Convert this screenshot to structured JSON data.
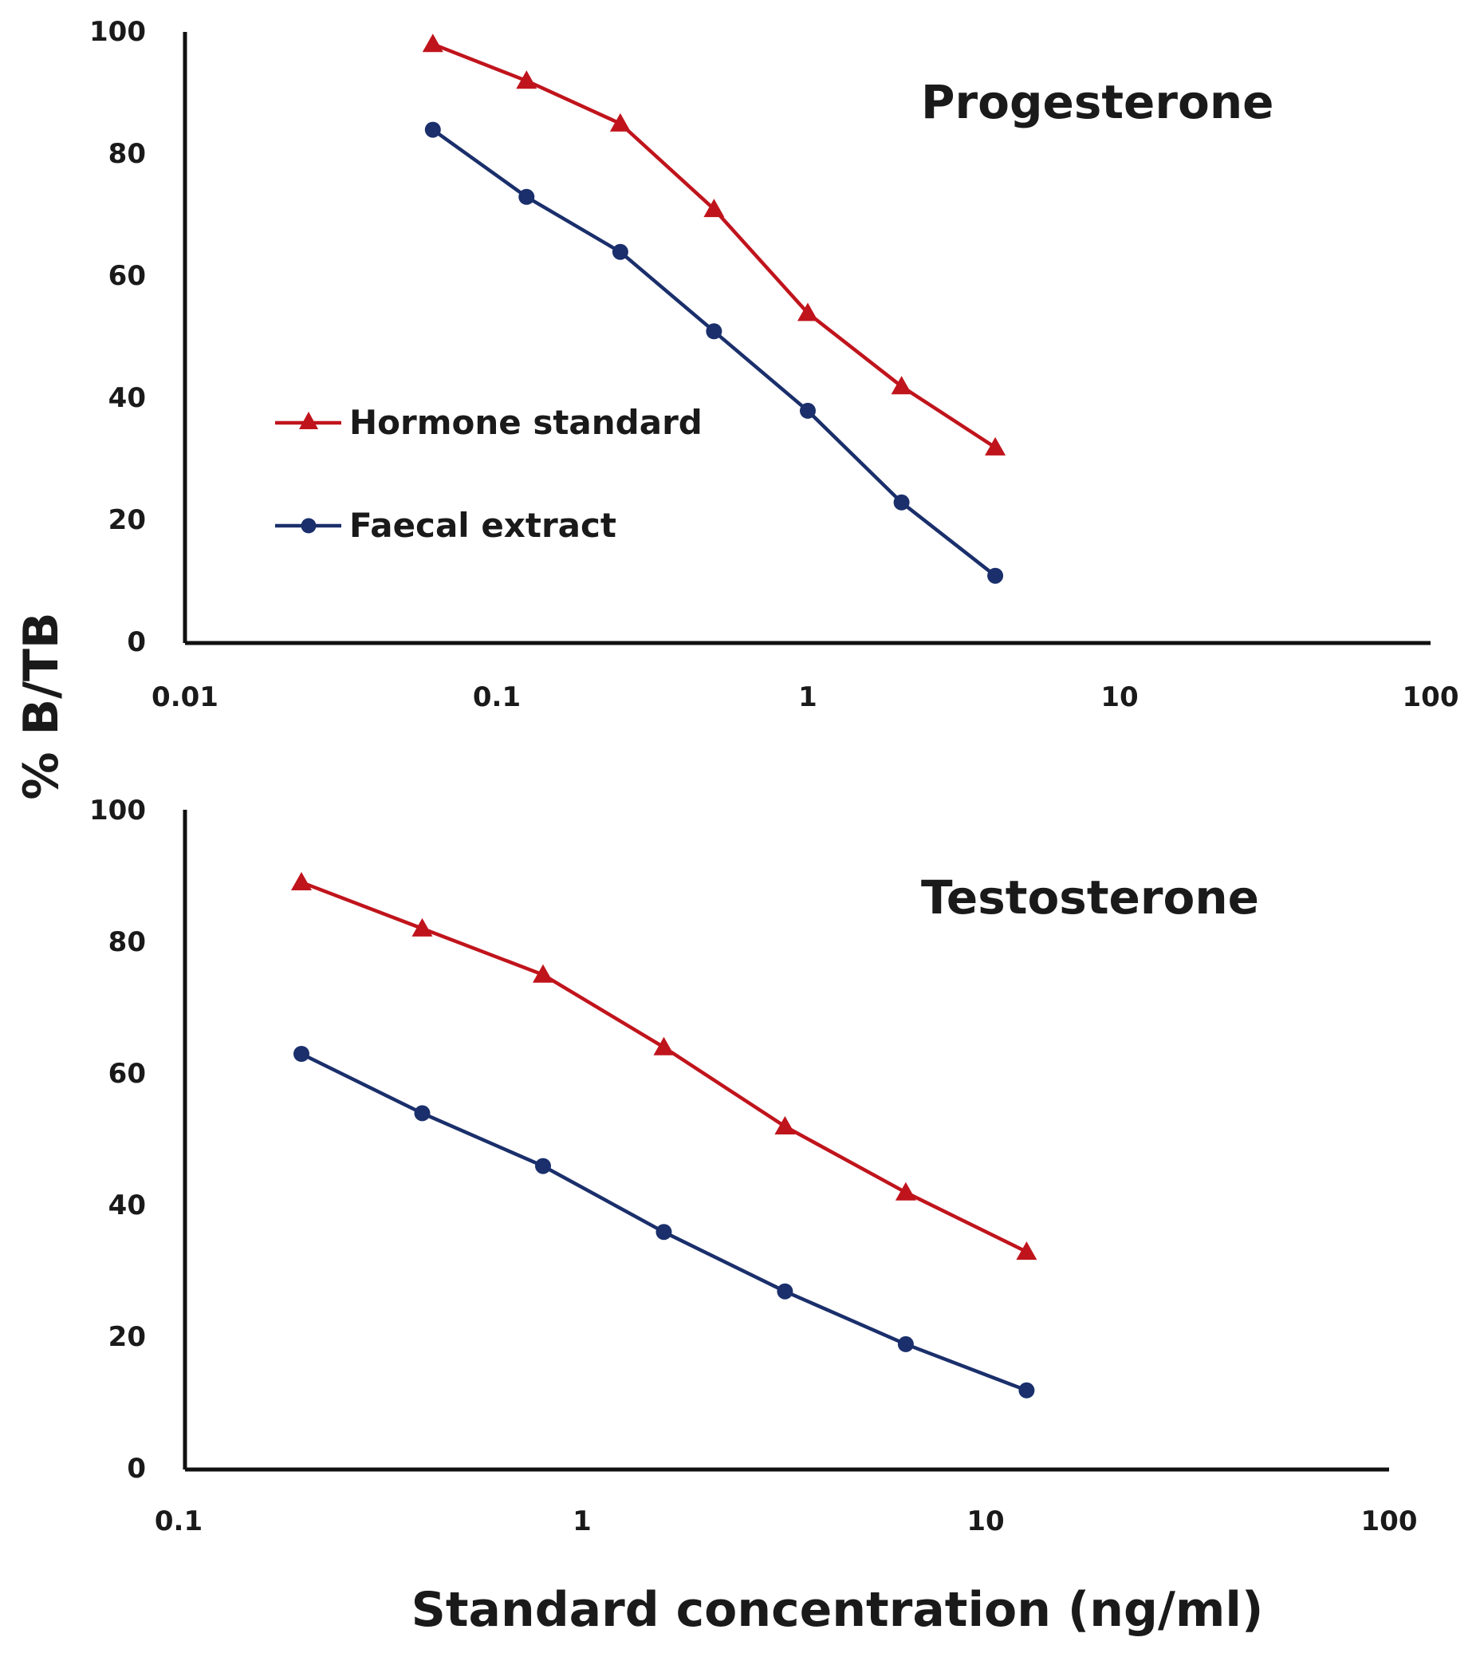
{
  "figure": {
    "ylabel": "% B/TB",
    "xlabel": "Standard concentration (ng/ml)"
  },
  "colors": {
    "hormone": "#c0141c",
    "faecal": "#1a2f6b",
    "axis": "#111111"
  },
  "chart_data": [
    {
      "type": "line",
      "title": "Progesterone",
      "xscale": "log",
      "xlim": [
        0.01,
        100
      ],
      "ylim": [
        0,
        100
      ],
      "x_ticks": [
        "0.01",
        "0.1",
        "1",
        "10",
        "100"
      ],
      "y_ticks": [
        "0",
        "20",
        "40",
        "60",
        "80",
        "100"
      ],
      "legend": {
        "position": "center-left",
        "entries": [
          "Hormone standard",
          "Faecal extract"
        ]
      },
      "series": [
        {
          "name": "Hormone standard",
          "marker": "triangle",
          "color": "#c0141c",
          "x": [
            0.0625,
            0.125,
            0.25,
            0.5,
            1,
            2,
            4
          ],
          "values": [
            98,
            92,
            85,
            71,
            54,
            42,
            32
          ]
        },
        {
          "name": "Faecal extract",
          "marker": "circle",
          "color": "#1a2f6b",
          "x": [
            0.0625,
            0.125,
            0.25,
            0.5,
            1,
            2,
            4
          ],
          "values": [
            84,
            73,
            64,
            51,
            38,
            23,
            11
          ]
        }
      ]
    },
    {
      "type": "line",
      "title": "Testosterone",
      "xscale": "log",
      "xlim": [
        0.1,
        100
      ],
      "ylim": [
        0,
        100
      ],
      "x_ticks": [
        "0.1",
        "1",
        "10",
        "100"
      ],
      "y_ticks": [
        "0",
        "20",
        "40",
        "60",
        "80",
        "100"
      ],
      "series": [
        {
          "name": "Hormone standard",
          "marker": "triangle",
          "color": "#c0141c",
          "x": [
            0.195,
            0.39,
            0.78,
            1.56,
            3.125,
            6.25,
            12.5
          ],
          "values": [
            89,
            82,
            75,
            64,
            52,
            42,
            33
          ]
        },
        {
          "name": "Faecal extract",
          "marker": "circle",
          "color": "#1a2f6b",
          "x": [
            0.195,
            0.39,
            0.78,
            1.56,
            3.125,
            6.25,
            12.5
          ],
          "values": [
            63,
            54,
            46,
            36,
            27,
            19,
            12
          ]
        }
      ]
    }
  ]
}
